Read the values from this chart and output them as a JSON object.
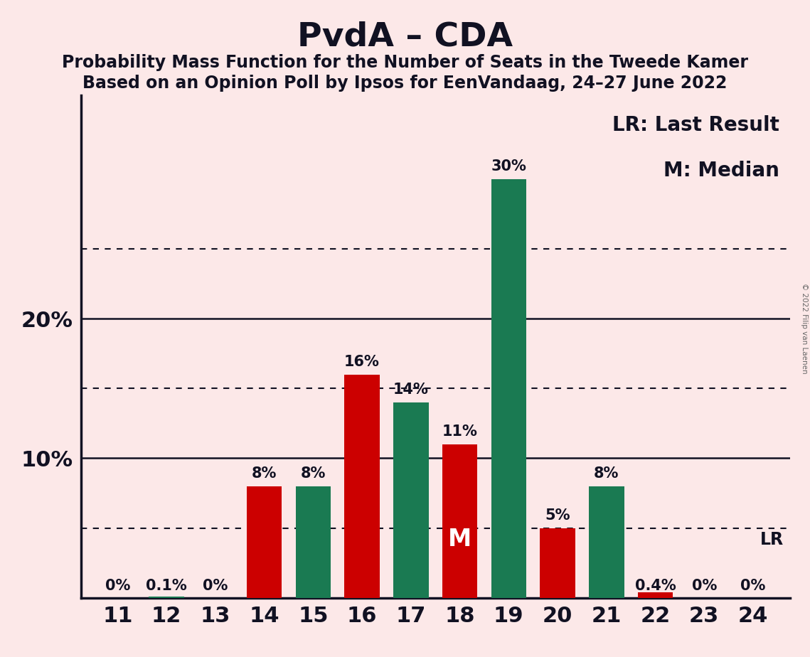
{
  "title": "PvdA – CDA",
  "subtitle1": "Probability Mass Function for the Number of Seats in the Tweede Kamer",
  "subtitle2": "Based on an Opinion Poll by Ipsos for EenVandaag, 24–27 June 2022",
  "legend_lr": "LR: Last Result",
  "legend_m": "M: Median",
  "copyright": "© 2022 Filip van Laenen",
  "seats": [
    11,
    12,
    13,
    14,
    15,
    16,
    17,
    18,
    19,
    20,
    21,
    22,
    23,
    24
  ],
  "values": [
    0.0,
    0.1,
    0.0,
    8.0,
    8.0,
    16.0,
    14.0,
    11.0,
    30.0,
    5.0,
    8.0,
    0.4,
    0.0,
    0.0
  ],
  "colors": [
    "#cc0000",
    "#1a7a52",
    "#cc0000",
    "#cc0000",
    "#1a7a52",
    "#cc0000",
    "#1a7a52",
    "#cc0000",
    "#1a7a52",
    "#cc0000",
    "#1a7a52",
    "#cc0000",
    "#cc0000",
    "#cc0000"
  ],
  "labels": [
    "0%",
    "0.1%",
    "0%",
    "8%",
    "8%",
    "16%",
    "14%",
    "11%",
    "30%",
    "5%",
    "8%",
    "0.4%",
    "0%",
    "0%"
  ],
  "median_seat": 18,
  "background_color": "#fce8e8",
  "ylim_max": 36,
  "ytick_positions": [
    10,
    20
  ],
  "ytick_labels": [
    "10%",
    "20%"
  ],
  "solid_gridlines": [
    10,
    20
  ],
  "dotted_gridlines": [
    5,
    15,
    25
  ],
  "lr_line": 5.0,
  "title_fontsize": 34,
  "subtitle_fontsize": 17,
  "label_fontsize": 15,
  "tick_fontsize": 22,
  "legend_fontsize": 20,
  "bar_width": 0.72,
  "spine_color": "#111122",
  "text_color": "#111122"
}
